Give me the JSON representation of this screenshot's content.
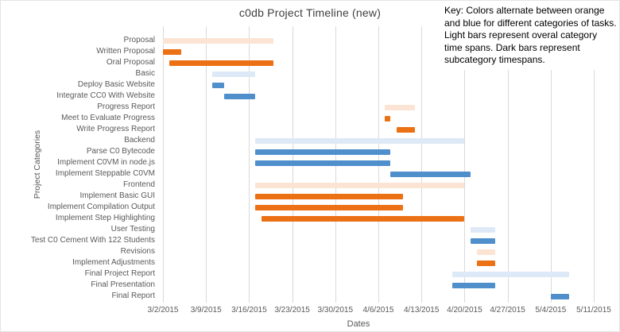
{
  "title": "c0db Project Timeline (new)",
  "key_note": "Key: Colors alternate between orange and blue for different categories of tasks. Light bars represent overal category time spans. Dark bars represent subcategory timespans.",
  "colors": {
    "orange_dark": "#EC7014",
    "orange_light": "#FCE4D4",
    "blue_dark": "#4F8FCC",
    "blue_light": "#DDE9F6",
    "gridline": "#D9D9D9",
    "axis_text": "#595959",
    "title_text": "#404040"
  },
  "chart_data": {
    "type": "bar",
    "variant": "gantt",
    "title": "c0db Project Timeline (new)",
    "xlabel": "Dates",
    "ylabel": "Project Categories",
    "grid": true,
    "legend": false,
    "x_range": [
      "3/2/2015",
      "5/11/2015"
    ],
    "x_ticks": [
      "3/2/2015",
      "3/9/2015",
      "3/16/2015",
      "3/23/2015",
      "3/30/2015",
      "4/6/2015",
      "4/13/2015",
      "4/20/2015",
      "4/27/2015",
      "5/4/2015",
      "5/11/2015"
    ],
    "tasks": [
      {
        "label": "Proposal",
        "start": "3/2/2015",
        "end": "3/20/2015",
        "group": "orange",
        "level": "category"
      },
      {
        "label": "Written Proposal",
        "start": "3/2/2015",
        "end": "3/5/2015",
        "group": "orange",
        "level": "subcategory"
      },
      {
        "label": "Oral Proposal",
        "start": "3/3/2015",
        "end": "3/20/2015",
        "group": "orange",
        "level": "subcategory"
      },
      {
        "label": "Basic",
        "start": "3/10/2015",
        "end": "3/17/2015",
        "group": "blue",
        "level": "category"
      },
      {
        "label": "Deploy Basic Website",
        "start": "3/10/2015",
        "end": "3/12/2015",
        "group": "blue",
        "level": "subcategory"
      },
      {
        "label": "Integrate CC0 With Website",
        "start": "3/12/2015",
        "end": "3/17/2015",
        "group": "blue",
        "level": "subcategory"
      },
      {
        "label": "Progress Report",
        "start": "4/7/2015",
        "end": "4/12/2015",
        "group": "orange",
        "level": "category"
      },
      {
        "label": "Meet to Evaluate Progress",
        "start": "4/7/2015",
        "end": "4/8/2015",
        "group": "orange",
        "level": "subcategory"
      },
      {
        "label": "Write Progress Report",
        "start": "4/9/2015",
        "end": "4/12/2015",
        "group": "orange",
        "level": "subcategory"
      },
      {
        "label": "Backend",
        "start": "3/17/2015",
        "end": "4/20/2015",
        "group": "blue",
        "level": "category"
      },
      {
        "label": "Parse C0 Bytecode",
        "start": "3/17/2015",
        "end": "4/8/2015",
        "group": "blue",
        "level": "subcategory"
      },
      {
        "label": "Implement C0VM in node.js",
        "start": "3/17/2015",
        "end": "4/8/2015",
        "group": "blue",
        "level": "subcategory"
      },
      {
        "label": "Implement Steppable C0VM",
        "start": "4/8/2015",
        "end": "4/21/2015",
        "group": "blue",
        "level": "subcategory"
      },
      {
        "label": "Frontend",
        "start": "3/17/2015",
        "end": "4/20/2015",
        "group": "orange",
        "level": "category"
      },
      {
        "label": "Implement Basic GUI",
        "start": "3/17/2015",
        "end": "4/10/2015",
        "group": "orange",
        "level": "subcategory"
      },
      {
        "label": "Implement Compilation Output",
        "start": "3/17/2015",
        "end": "4/10/2015",
        "group": "orange",
        "level": "subcategory"
      },
      {
        "label": "Implement Step Highlighting",
        "start": "3/18/2015",
        "end": "4/20/2015",
        "group": "orange",
        "level": "subcategory"
      },
      {
        "label": "User Testing",
        "start": "4/21/2015",
        "end": "4/25/2015",
        "group": "blue",
        "level": "category"
      },
      {
        "label": "Test C0 Cement With 122 Students",
        "start": "4/21/2015",
        "end": "4/25/2015",
        "group": "blue",
        "level": "subcategory"
      },
      {
        "label": "Revisions",
        "start": "4/22/2015",
        "end": "4/25/2015",
        "group": "orange",
        "level": "category"
      },
      {
        "label": "Implement Adjustments",
        "start": "4/22/2015",
        "end": "4/25/2015",
        "group": "orange",
        "level": "subcategory"
      },
      {
        "label": "Final Project Report",
        "start": "4/18/2015",
        "end": "5/7/2015",
        "group": "blue",
        "level": "category"
      },
      {
        "label": "Final Presentation",
        "start": "4/18/2015",
        "end": "4/25/2015",
        "group": "blue",
        "level": "subcategory"
      },
      {
        "label": "Final Report",
        "start": "5/4/2015",
        "end": "5/7/2015",
        "group": "blue",
        "level": "subcategory"
      }
    ]
  }
}
